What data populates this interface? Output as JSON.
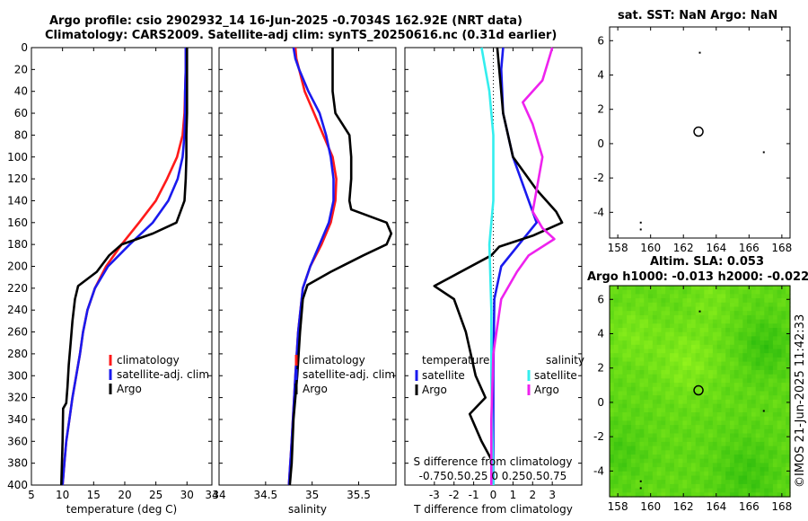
{
  "title_line1": "Argo profile: csio 2902932_14 16-Jun-2025 -0.7034S 162.92E (NRT data)",
  "title_line2": "Climatology: CARS2009. Satellite-adj clim: synTS_20250616.nc (0.31d earlier)",
  "credit": "©IMOS 21-Jun-2025 11:42:33",
  "colors": {
    "red": "#ff1a1a",
    "blue": "#1a1aee",
    "black": "#000000",
    "cyan": "#33eeee",
    "magenta": "#ee22ee",
    "map_green": "#33cc22"
  },
  "chart_data": [
    {
      "type": "line",
      "name": "temperature",
      "xlabel": "temperature (deg C)",
      "xlim": [
        5,
        34
      ],
      "ylim": [
        0,
        400
      ],
      "xticks": [
        "5",
        "10",
        "15",
        "20",
        "25",
        "30",
        "34"
      ],
      "yticks": [
        "0",
        "20",
        "40",
        "60",
        "80",
        "100",
        "120",
        "140",
        "160",
        "180",
        "200",
        "220",
        "240",
        "260",
        "280",
        "300",
        "320",
        "340",
        "360",
        "380",
        "400"
      ],
      "legend": [
        "climatology",
        "satellite-adj. clim",
        "Argo"
      ],
      "series": [
        {
          "name": "climatology",
          "color": "red",
          "points": [
            [
              29.8,
              0
            ],
            [
              29.8,
              20
            ],
            [
              29.7,
              40
            ],
            [
              29.6,
              60
            ],
            [
              29.3,
              80
            ],
            [
              28.4,
              100
            ],
            [
              26.8,
              120
            ],
            [
              25.0,
              140
            ],
            [
              22.3,
              160
            ],
            [
              19.5,
              180
            ],
            [
              17.0,
              200
            ],
            [
              15.2,
              220
            ],
            [
              14.0,
              240
            ],
            [
              13.3,
              260
            ],
            [
              12.8,
              280
            ],
            [
              12.2,
              300
            ],
            [
              11.6,
              320
            ],
            [
              11.1,
              340
            ],
            [
              10.6,
              360
            ],
            [
              10.3,
              380
            ],
            [
              10.0,
              400
            ]
          ]
        },
        {
          "name": "satellite-adj. clim",
          "color": "blue",
          "points": [
            [
              29.8,
              0
            ],
            [
              29.8,
              20
            ],
            [
              29.7,
              40
            ],
            [
              29.7,
              60
            ],
            [
              29.6,
              80
            ],
            [
              29.3,
              100
            ],
            [
              28.5,
              120
            ],
            [
              27.0,
              140
            ],
            [
              24.5,
              160
            ],
            [
              20.8,
              180
            ],
            [
              17.3,
              200
            ],
            [
              15.2,
              220
            ],
            [
              14.0,
              240
            ],
            [
              13.3,
              260
            ],
            [
              12.8,
              280
            ],
            [
              12.2,
              300
            ],
            [
              11.6,
              320
            ],
            [
              11.1,
              340
            ],
            [
              10.6,
              360
            ],
            [
              10.3,
              380
            ],
            [
              10.0,
              400
            ]
          ]
        },
        {
          "name": "Argo",
          "color": "black",
          "points": [
            [
              30.0,
              0
            ],
            [
              30.0,
              20
            ],
            [
              30.0,
              40
            ],
            [
              30.0,
              60
            ],
            [
              29.9,
              80
            ],
            [
              29.9,
              100
            ],
            [
              29.8,
              120
            ],
            [
              29.6,
              140
            ],
            [
              28.3,
              160
            ],
            [
              24.5,
              170
            ],
            [
              19.5,
              180
            ],
            [
              17.5,
              190
            ],
            [
              15.5,
              205
            ],
            [
              12.5,
              218
            ],
            [
              12.0,
              230
            ],
            [
              11.6,
              250
            ],
            [
              11.3,
              270
            ],
            [
              11.0,
              290
            ],
            [
              10.8,
              310
            ],
            [
              10.6,
              325
            ],
            [
              10.1,
              330
            ],
            [
              10.0,
              360
            ],
            [
              9.8,
              400
            ]
          ]
        }
      ]
    },
    {
      "type": "line",
      "name": "salinity",
      "xlabel": "salinity",
      "xlim": [
        34,
        35.9
      ],
      "ylim": [
        0,
        400
      ],
      "xticks": [
        "34",
        "34.5",
        "35",
        "35.5"
      ],
      "legend": [
        "climatology",
        "satellite-adj. clim",
        "Argo"
      ],
      "series": [
        {
          "name": "climatology",
          "color": "red",
          "points": [
            [
              34.82,
              0
            ],
            [
              34.83,
              10
            ],
            [
              34.86,
              20
            ],
            [
              34.92,
              40
            ],
            [
              35.02,
              60
            ],
            [
              35.12,
              80
            ],
            [
              35.22,
              100
            ],
            [
              35.26,
              120
            ],
            [
              35.25,
              140
            ],
            [
              35.2,
              160
            ],
            [
              35.1,
              180
            ],
            [
              34.98,
              200
            ],
            [
              34.9,
              220
            ],
            [
              34.85,
              260
            ],
            [
              34.82,
              300
            ],
            [
              34.78,
              360
            ],
            [
              34.75,
              400
            ]
          ]
        },
        {
          "name": "satellite-adj. clim",
          "color": "blue",
          "points": [
            [
              34.8,
              0
            ],
            [
              34.82,
              10
            ],
            [
              34.86,
              20
            ],
            [
              34.96,
              40
            ],
            [
              35.08,
              60
            ],
            [
              35.15,
              80
            ],
            [
              35.2,
              100
            ],
            [
              35.23,
              120
            ],
            [
              35.23,
              140
            ],
            [
              35.18,
              160
            ],
            [
              35.08,
              180
            ],
            [
              34.98,
              200
            ],
            [
              34.9,
              220
            ],
            [
              34.85,
              260
            ],
            [
              34.82,
              300
            ],
            [
              34.78,
              360
            ],
            [
              34.75,
              400
            ]
          ]
        },
        {
          "name": "Argo",
          "color": "black",
          "points": [
            [
              35.22,
              0
            ],
            [
              35.22,
              20
            ],
            [
              35.22,
              40
            ],
            [
              35.25,
              60
            ],
            [
              35.4,
              80
            ],
            [
              35.42,
              100
            ],
            [
              35.42,
              120
            ],
            [
              35.4,
              140
            ],
            [
              35.42,
              148
            ],
            [
              35.8,
              160
            ],
            [
              35.85,
              170
            ],
            [
              35.8,
              180
            ],
            [
              35.55,
              190
            ],
            [
              35.2,
              205
            ],
            [
              34.95,
              217
            ],
            [
              34.9,
              230
            ],
            [
              34.87,
              260
            ],
            [
              34.84,
              300
            ],
            [
              34.8,
              340
            ],
            [
              34.78,
              380
            ],
            [
              34.76,
              400
            ]
          ]
        }
      ]
    },
    {
      "type": "line",
      "name": "difference",
      "xlabel": "T difference from climatology",
      "top_label": "S difference from climatology",
      "xlim": [
        -4.5,
        4.5
      ],
      "ylim": [
        0,
        400
      ],
      "xticks": [
        "-3",
        "-2",
        "-1",
        "0",
        "1",
        "2",
        "3"
      ],
      "top_ticks": "-0.750.50.25 0 0.250.50.75",
      "legend_temperature": {
        "heading": "temperature",
        "entries": [
          "satellite",
          "Argo"
        ]
      },
      "legend_salinity": {
        "heading": "salinity",
        "entries": [
          "satellite",
          "Argo"
        ]
      },
      "series": [
        {
          "name": "T satellite",
          "color": "blue",
          "points": [
            [
              0.5,
              0
            ],
            [
              0.4,
              20
            ],
            [
              0.5,
              60
            ],
            [
              1.0,
              100
            ],
            [
              1.8,
              140
            ],
            [
              2.2,
              160
            ],
            [
              1.3,
              180
            ],
            [
              0.4,
              200
            ],
            [
              0.05,
              230
            ],
            [
              0.0,
              300
            ],
            [
              0.0,
              400
            ]
          ]
        },
        {
          "name": "T Argo",
          "color": "black",
          "points": [
            [
              0.2,
              0
            ],
            [
              0.3,
              20
            ],
            [
              0.5,
              60
            ],
            [
              1.0,
              100
            ],
            [
              2.2,
              130
            ],
            [
              3.2,
              150
            ],
            [
              3.5,
              160
            ],
            [
              2.0,
              172
            ],
            [
              0.3,
              182
            ],
            [
              -0.1,
              190
            ],
            [
              -3.0,
              218
            ],
            [
              -2.0,
              230
            ],
            [
              -1.4,
              260
            ],
            [
              -0.9,
              300
            ],
            [
              -0.4,
              320
            ],
            [
              -1.2,
              335
            ],
            [
              -0.6,
              360
            ],
            [
              0.0,
              380
            ],
            [
              -0.1,
              400
            ]
          ]
        },
        {
          "name": "S satellite",
          "color": "cyan",
          "points": [
            [
              -0.6,
              0
            ],
            [
              -0.4,
              20
            ],
            [
              -0.2,
              40
            ],
            [
              0.0,
              80
            ],
            [
              0.0,
              140
            ],
            [
              -0.2,
              180
            ],
            [
              -0.1,
              240
            ],
            [
              -0.1,
              300
            ],
            [
              0.0,
              400
            ]
          ]
        },
        {
          "name": "S Argo",
          "color": "magenta",
          "points": [
            [
              3.0,
              0
            ],
            [
              2.5,
              30
            ],
            [
              1.5,
              50
            ],
            [
              2.0,
              70
            ],
            [
              2.5,
              100
            ],
            [
              2.2,
              130
            ],
            [
              2.0,
              150
            ],
            [
              2.5,
              165
            ],
            [
              3.1,
              175
            ],
            [
              1.8,
              190
            ],
            [
              1.2,
              205
            ],
            [
              0.4,
              230
            ],
            [
              0.0,
              280
            ],
            [
              -0.1,
              340
            ],
            [
              -0.1,
              400
            ]
          ]
        }
      ]
    },
    {
      "type": "scatter",
      "name": "map_sst",
      "title": "sat. SST: NaN Argo: NaN",
      "xlim": [
        157.5,
        168.5
      ],
      "ylim": [
        -5.5,
        6.8
      ],
      "xticks": [
        "158",
        "160",
        "162",
        "164",
        "166",
        "168"
      ],
      "yticks": [
        "6",
        "4",
        "2",
        "0",
        "-2",
        "-4"
      ],
      "argo_location": [
        162.92,
        0.7
      ],
      "dots": [
        [
          163.0,
          5.3
        ],
        [
          166.9,
          -0.5
        ],
        [
          159.4,
          -4.6
        ],
        [
          159.4,
          -5.0
        ]
      ]
    },
    {
      "type": "heatmap",
      "name": "map_sla",
      "title": "Altim. SLA: 0.053",
      "subtitle": "Argo h1000: -0.013 h2000: -0.022",
      "xlim": [
        157.5,
        168.5
      ],
      "ylim": [
        -5.5,
        6.8
      ],
      "xticks": [
        "158",
        "160",
        "162",
        "164",
        "166",
        "168"
      ],
      "yticks": [
        "6",
        "4",
        "2",
        "0",
        "-2",
        "-4"
      ],
      "argo_location": [
        162.92,
        0.7
      ],
      "dots": [
        [
          163.0,
          5.3
        ],
        [
          166.9,
          -0.5
        ],
        [
          159.4,
          -4.6
        ],
        [
          159.4,
          -5.0
        ]
      ]
    }
  ]
}
